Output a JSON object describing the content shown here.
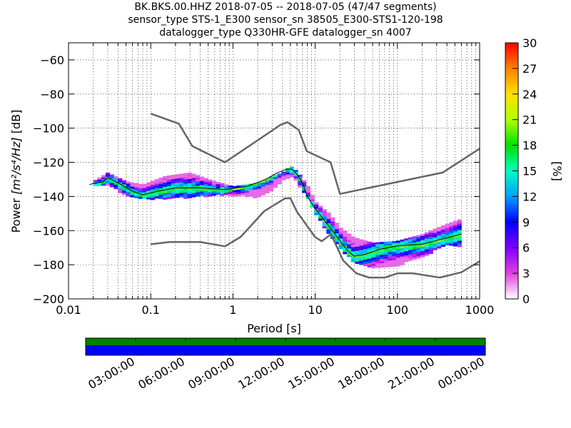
{
  "title_lines": [
    "BK.BKS.00.HHZ   2018-07-05 -- 2018-07-05  (47/47 segments)",
    "sensor_type STS-1_E300 sensor_sn 38505_E300-STS1-120-198",
    "datalogger_type Q330HR-GFE datalogger_sn 4007"
  ],
  "colors": {
    "model_curve": "#666666",
    "mean_curve": "#000000",
    "timeline_top": "#008000",
    "timeline_bottom": "#0000ff"
  },
  "chart_data": {
    "type": "heatmap",
    "description_free": true,
    "xlabel": "Period [s]",
    "ylabel_prefix": "Power ",
    "ylabel_units": "[m²/s⁴/Hz]",
    "ylabel_suffix": " [dB]",
    "x_scale": "log",
    "xlim": [
      0.01,
      1000
    ],
    "ylim": [
      -200,
      -50
    ],
    "x_ticks": [
      0.01,
      0.1,
      1,
      10,
      100,
      1000
    ],
    "x_tick_labels": [
      "0.01",
      "0.1",
      "1",
      "10",
      "100",
      "1000"
    ],
    "y_ticks": [
      -200,
      -180,
      -160,
      -140,
      -120,
      -100,
      -80,
      -60
    ],
    "y_tick_labels": [
      "−200",
      "−180",
      "−160",
      "−140",
      "−120",
      "−100",
      "−80",
      "−60"
    ],
    "colorbar": {
      "label": "[%]",
      "ticks": [
        0,
        3,
        6,
        9,
        12,
        15,
        18,
        21,
        24,
        27,
        30
      ],
      "tick_labels": [
        "0",
        "3",
        "6",
        "9",
        "12",
        "15",
        "18",
        "21",
        "24",
        "27",
        "30"
      ],
      "range": [
        0,
        30
      ]
    },
    "noise_model_high": {
      "period": [
        0.1,
        0.22,
        0.32,
        0.8,
        3.8,
        4.6,
        6.3,
        7.9,
        15.4,
        20,
        354.8,
        1000
      ],
      "power": [
        -91.5,
        -97.4,
        -110.5,
        -120,
        -98,
        -96.5,
        -101,
        -113.5,
        -120,
        -138.5,
        -126,
        -112
      ]
    },
    "noise_model_low": {
      "period": [
        0.1,
        0.17,
        0.4,
        0.8,
        1.24,
        2.4,
        4.3,
        5,
        6,
        10,
        12,
        15.6,
        21.9,
        31.6,
        45,
        70,
        101,
        154,
        328,
        600,
        1000
      ],
      "power": [
        -168,
        -166.7,
        -166.7,
        -169.2,
        -163.7,
        -148.6,
        -141.1,
        -141.1,
        -149,
        -163.8,
        -166.2,
        -162.1,
        -177.5,
        -185,
        -187.5,
        -187.5,
        -185,
        -185,
        -187.5,
        -184.4,
        -178
      ]
    },
    "mean_psd": {
      "period": [
        0.018,
        0.022,
        0.026,
        0.03,
        0.04,
        0.06,
        0.08,
        0.12,
        0.2,
        0.4,
        0.8,
        1.5,
        2.5,
        3.5,
        4.5,
        5.2,
        6,
        7,
        8,
        10,
        12,
        15,
        20,
        25,
        30,
        40,
        60,
        100,
        200,
        350,
        600
      ],
      "power": [
        -133,
        -132,
        -131.5,
        -129,
        -132,
        -137,
        -139,
        -137,
        -135,
        -135,
        -136,
        -134,
        -130,
        -126,
        -124,
        -124,
        -127,
        -132,
        -140,
        -147,
        -152,
        -158,
        -166,
        -172,
        -175,
        -174,
        -171,
        -169,
        -168,
        -165,
        -162
      ]
    },
    "psd_density": {
      "series": [
        {
          "name": "",
          "period": [
            0.02,
            0.03,
            0.05,
            0.08,
            0.15,
            0.3,
            0.6,
            1,
            2,
            3,
            4,
            5,
            6,
            8,
            10,
            15,
            20,
            30,
            50,
            100,
            200,
            400,
            600
          ],
          "upper": [
            -131,
            -126,
            -131,
            -133,
            -128,
            -126,
            -131,
            -134,
            -132,
            -128,
            -126,
            -122,
            -125,
            -133,
            -143,
            -150,
            -158,
            -164,
            -167,
            -166,
            -162,
            -156,
            -153
          ],
          "lower": [
            -134,
            -133,
            -139,
            -141,
            -141,
            -140,
            -139,
            -139,
            -140,
            -136,
            -130,
            -128,
            -131,
            -140,
            -150,
            -162,
            -170,
            -178,
            -182,
            -180,
            -175,
            -168,
            -170
          ]
        }
      ]
    },
    "timeline": {
      "tick_labels": [
        "03:00:00",
        "06:00:00",
        "09:00:00",
        "12:00:00",
        "15:00:00",
        "18:00:00",
        "21:00:00",
        "00:00:00"
      ],
      "coverage_fraction": 1.0
    }
  }
}
